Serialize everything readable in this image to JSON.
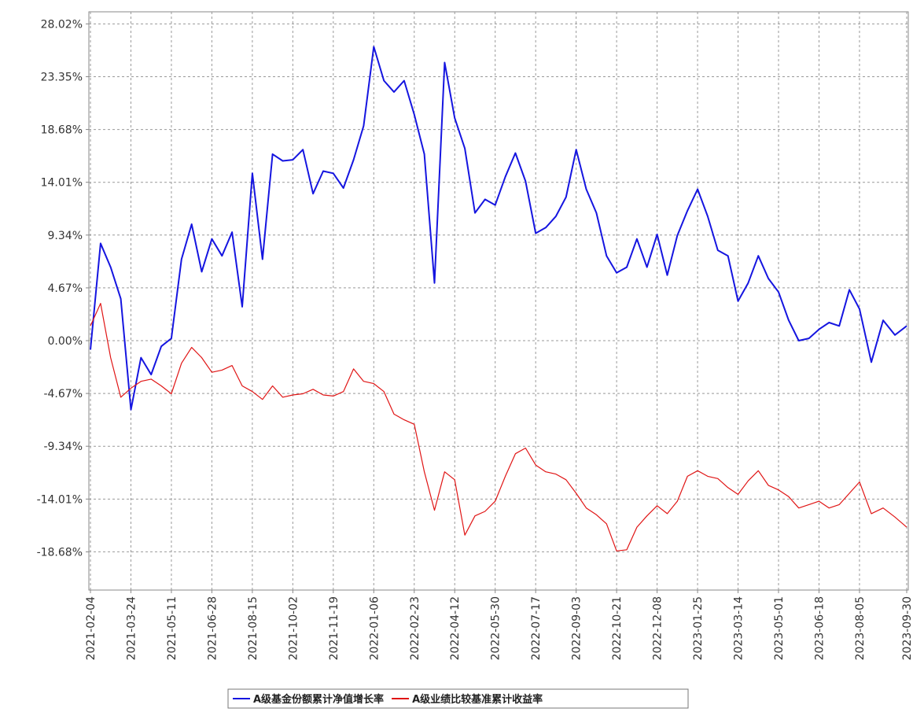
{
  "chart_data": {
    "type": "line",
    "x": [
      "2021-02-04",
      "2021-02-16",
      "2021-02-28",
      "2021-03-12",
      "2021-03-24",
      "2021-04-05",
      "2021-04-17",
      "2021-04-29",
      "2021-05-11",
      "2021-05-23",
      "2021-06-04",
      "2021-06-16",
      "2021-06-28",
      "2021-07-10",
      "2021-07-22",
      "2021-08-03",
      "2021-08-15",
      "2021-08-27",
      "2021-09-08",
      "2021-09-20",
      "2021-10-02",
      "2021-10-14",
      "2021-10-26",
      "2021-11-07",
      "2021-11-19",
      "2021-12-01",
      "2021-12-13",
      "2021-12-25",
      "2022-01-06",
      "2022-01-18",
      "2022-01-30",
      "2022-02-11",
      "2022-02-23",
      "2022-03-07",
      "2022-03-19",
      "2022-03-31",
      "2022-04-12",
      "2022-04-24",
      "2022-05-06",
      "2022-05-18",
      "2022-05-30",
      "2022-06-11",
      "2022-06-23",
      "2022-07-05",
      "2022-07-17",
      "2022-07-29",
      "2022-08-10",
      "2022-08-22",
      "2022-09-03",
      "2022-09-15",
      "2022-09-27",
      "2022-10-09",
      "2022-10-21",
      "2022-11-02",
      "2022-11-14",
      "2022-11-26",
      "2022-12-08",
      "2022-12-20",
      "2023-01-01",
      "2023-01-13",
      "2023-01-25",
      "2023-02-06",
      "2023-02-18",
      "2023-03-02",
      "2023-03-14",
      "2023-03-26",
      "2023-04-07",
      "2023-04-19",
      "2023-05-01",
      "2023-05-13",
      "2023-05-25",
      "2023-06-06",
      "2023-06-18",
      "2023-06-30",
      "2023-07-12",
      "2023-07-24",
      "2023-08-05",
      "2023-08-19",
      "2023-09-02",
      "2023-09-16",
      "2023-09-30"
    ],
    "series": [
      {
        "name": "A级基金份额累计净值增长率",
        "color": "#1515e0",
        "values": [
          -0.8,
          8.6,
          6.5,
          3.7,
          -6.1,
          -1.5,
          -3.0,
          -0.5,
          0.2,
          7.2,
          10.3,
          6.1,
          9.0,
          7.5,
          9.6,
          3.0,
          14.8,
          7.2,
          16.5,
          15.9,
          16.0,
          16.9,
          13.0,
          15.0,
          14.8,
          13.5,
          16.0,
          19.0,
          26.0,
          23.0,
          22.0,
          23.0,
          20.0,
          16.5,
          5.1,
          24.6,
          19.7,
          17.0,
          11.3,
          12.5,
          12.0,
          14.5,
          16.6,
          14.1,
          9.5,
          10.0,
          11.0,
          12.7,
          16.9,
          13.4,
          11.3,
          7.5,
          6.0,
          6.5,
          9.0,
          6.5,
          9.4,
          5.8,
          9.3,
          11.5,
          13.4,
          11.0,
          8.0,
          7.5,
          3.5,
          5.1,
          7.5,
          5.5,
          4.3,
          1.8,
          0.0,
          0.2,
          1.0,
          1.6,
          1.3,
          4.5,
          2.8,
          -1.9,
          1.8,
          0.5,
          1.3
        ]
      },
      {
        "name": "A级业绩比较基准累计收益率",
        "color": "#e01515",
        "values": [
          1.3,
          3.3,
          -1.5,
          -5.0,
          -4.2,
          -3.6,
          -3.4,
          -4.0,
          -4.7,
          -2.0,
          -0.6,
          -1.5,
          -2.8,
          -2.6,
          -2.2,
          -4.0,
          -4.5,
          -5.2,
          -4.0,
          -5.0,
          -4.8,
          -4.7,
          -4.3,
          -4.8,
          -4.9,
          -4.5,
          -2.5,
          -3.6,
          -3.8,
          -4.5,
          -6.5,
          -7.0,
          -7.4,
          -11.6,
          -15.0,
          -11.6,
          -12.3,
          -17.2,
          -15.5,
          -15.1,
          -14.2,
          -12.0,
          -10.0,
          -9.5,
          -11.0,
          -11.6,
          -11.8,
          -12.3,
          -13.5,
          -14.8,
          -15.4,
          -16.2,
          -18.6,
          -18.5,
          -16.5,
          -15.5,
          -14.6,
          -15.3,
          -14.2,
          -12.0,
          -11.5,
          -12.0,
          -12.2,
          -13.0,
          -13.6,
          -12.4,
          -11.5,
          -12.8,
          -13.2,
          -13.8,
          -14.8,
          -14.5,
          -14.2,
          -14.8,
          -14.5,
          -13.5,
          -12.5,
          -15.3,
          -14.8,
          -15.6,
          -16.5
        ]
      }
    ],
    "xlim": [
      "2021-02-04",
      "2023-09-30"
    ],
    "xticks": [
      "2021-02-04",
      "2021-03-24",
      "2021-05-11",
      "2021-06-28",
      "2021-08-15",
      "2021-10-02",
      "2021-11-19",
      "2022-01-06",
      "2022-02-23",
      "2022-04-12",
      "2022-05-30",
      "2022-07-17",
      "2022-09-03",
      "2022-10-21",
      "2022-12-08",
      "2023-01-25",
      "2023-03-14",
      "2023-05-01",
      "2023-06-18",
      "2023-08-05",
      "2023-09-30"
    ],
    "ylim": [
      -22.06,
      29.09
    ],
    "yticks": [
      {
        "value": 28.02,
        "label": "28.02%"
      },
      {
        "value": 23.35,
        "label": "23.35%"
      },
      {
        "value": 18.68,
        "label": "18.68%"
      },
      {
        "value": 14.01,
        "label": "14.01%"
      },
      {
        "value": 9.34,
        "label": "9.34%"
      },
      {
        "value": 4.67,
        "label": "4.67%"
      },
      {
        "value": 0.0,
        "label": "0.00%"
      },
      {
        "value": -4.67,
        "label": "-4.67%"
      },
      {
        "value": -9.34,
        "label": "-9.34%"
      },
      {
        "value": -14.01,
        "label": "-14.01%"
      },
      {
        "value": -18.68,
        "label": "-18.68%"
      }
    ],
    "grid": true
  }
}
